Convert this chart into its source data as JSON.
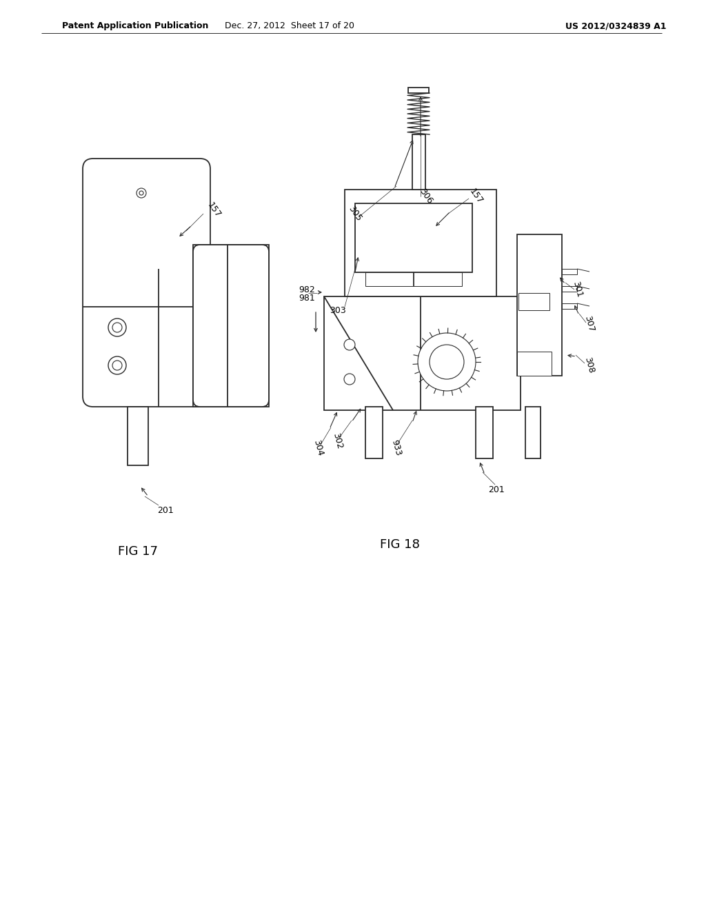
{
  "bg_color": "#ffffff",
  "header_left": "Patent Application Publication",
  "header_mid": "Dec. 27, 2012  Sheet 17 of 20",
  "header_right": "US 2012/0324839 A1",
  "fig17_label": "FIG 17",
  "fig18_label": "FIG 18",
  "line_color": "#2a2a2a",
  "lw": 1.3,
  "thin_lw": 0.7
}
